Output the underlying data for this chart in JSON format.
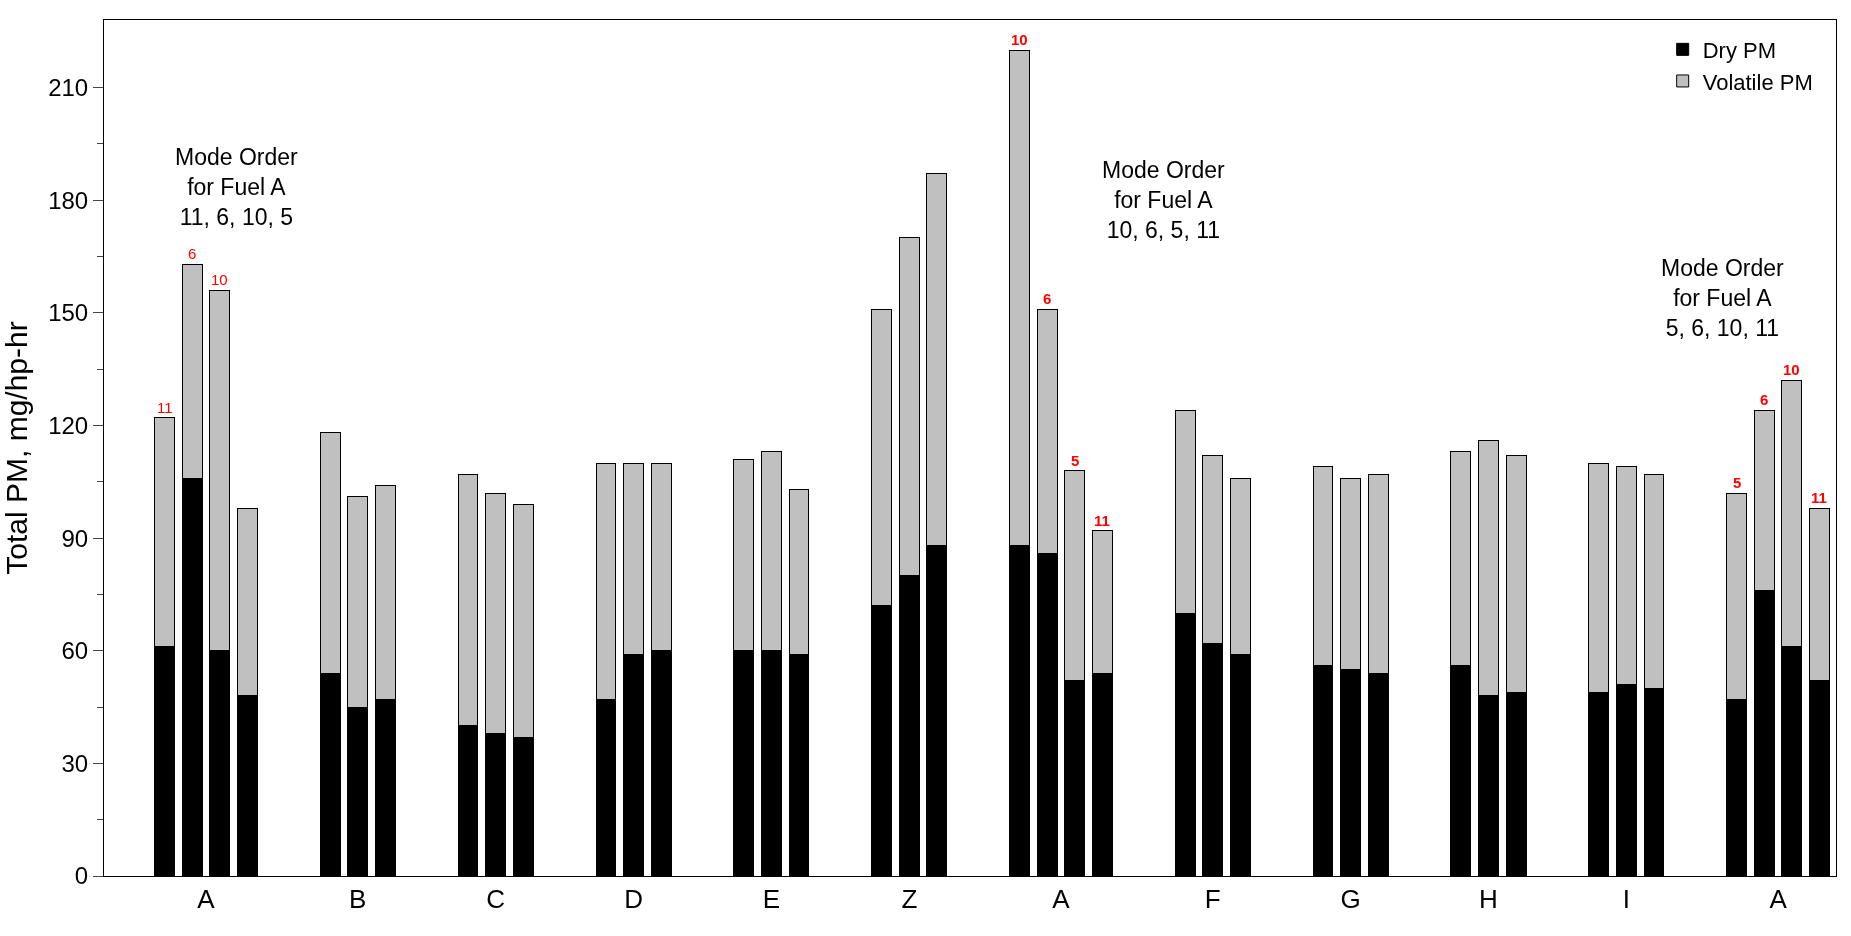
{
  "chart_data": {
    "type": "bar",
    "stacked": true,
    "ylabel": "Total PM, mg/hp-hr",
    "categories": [
      null,
      "A",
      null,
      null,
      null,
      null,
      null,
      "B",
      null,
      null,
      null,
      null,
      "C",
      null,
      null,
      null,
      null,
      "D",
      null,
      null,
      null,
      null,
      "E",
      null,
      null,
      null,
      null,
      "Z",
      null,
      null,
      null,
      null,
      "A",
      null,
      null,
      null,
      null,
      null,
      "F",
      null,
      null,
      null,
      null,
      "G",
      null,
      null,
      null,
      null,
      "H",
      null,
      null,
      null,
      null,
      "I",
      null,
      null,
      null,
      null,
      "A",
      null,
      null
    ],
    "series": [
      {
        "name": "Dry PM",
        "color": "#000000",
        "values": [
          61,
          106,
          60,
          48,
          null,
          null,
          54,
          45,
          47,
          null,
          null,
          40,
          38,
          37,
          null,
          null,
          47,
          59,
          60,
          null,
          null,
          60,
          60,
          59,
          null,
          null,
          72,
          80,
          88,
          null,
          null,
          88,
          86,
          52,
          54,
          null,
          null,
          70,
          62,
          59,
          null,
          null,
          56,
          55,
          54,
          null,
          null,
          56,
          48,
          49,
          null,
          null,
          49,
          51,
          50,
          null,
          null,
          47,
          76,
          61,
          52
        ]
      },
      {
        "name": "Volatile PM",
        "color": "#c0c0c0",
        "values": [
          61,
          57,
          96,
          50,
          null,
          null,
          64,
          56,
          57,
          null,
          null,
          67,
          64,
          62,
          null,
          null,
          63,
          51,
          50,
          null,
          null,
          51,
          53,
          44,
          null,
          null,
          79,
          90,
          99,
          null,
          null,
          132,
          65,
          56,
          38,
          null,
          null,
          54,
          50,
          47,
          null,
          null,
          53,
          51,
          53,
          null,
          null,
          57,
          68,
          63,
          null,
          null,
          61,
          58,
          57,
          null,
          null,
          55,
          48,
          71,
          46
        ]
      }
    ],
    "ylim": [
      0,
      228
    ],
    "yticks": [
      0,
      30,
      60,
      90,
      120,
      150,
      180,
      210
    ],
    "legend": "top right",
    "annotations": [
      "Mode Order\nfor Fuel A\n11, 6, 10, 5",
      "Mode Order\nfor Fuel A\n10, 6, 5, 11",
      "Mode Order\nfor Fuel A\n5, 6, 10, 11",
      {
        "text": "11",
        "y": 122
      },
      {
        "text": "6",
        "y": 163
      },
      {
        "text": "10",
        "y": 156
      },
      {
        "text": "10",
        "y": 220
      },
      {
        "text": "6",
        "y": 151
      },
      {
        "text": "5",
        "y": 108
      },
      {
        "text": "11",
        "y": 92
      },
      {
        "text": "5",
        "y": 102
      },
      {
        "text": "6",
        "y": 124
      },
      {
        "text": "10",
        "y": 132
      },
      {
        "text": "11",
        "y": 98
      }
    ]
  }
}
